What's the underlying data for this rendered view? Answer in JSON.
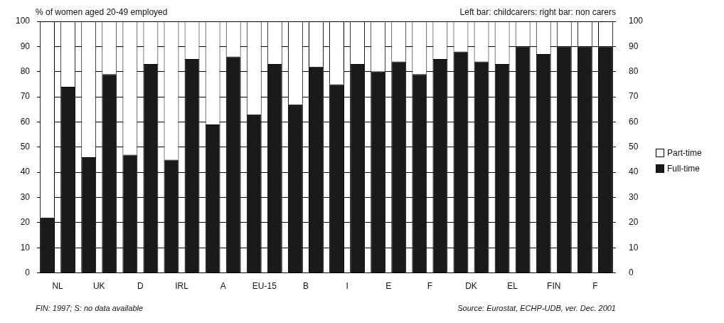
{
  "chart_data": {
    "type": "bar",
    "title": "% of women aged 20-49 employed",
    "subtitle": "Left bar: childcarers: right bar: non carers",
    "categories": [
      "NL",
      null,
      "UK",
      null,
      "D",
      null,
      "IRL",
      null,
      "A",
      null,
      "EU-15",
      null,
      "B",
      null,
      "I",
      null,
      "E",
      null,
      "F",
      null,
      "DK",
      null,
      "EL",
      null,
      "FIN",
      null,
      "F",
      null
    ],
    "stacked": true,
    "series": [
      {
        "name": "Full-time",
        "color": "#1a1a1a",
        "values": [
          22,
          74,
          46,
          79,
          47,
          83,
          45,
          85,
          59,
          86,
          63,
          83,
          67,
          82,
          75,
          83,
          80,
          84,
          79,
          85,
          88,
          84,
          83,
          90,
          87,
          90,
          90,
          90
        ]
      },
      {
        "name": "Part-time",
        "color": "#ffffff",
        "values": [
          78,
          26,
          54,
          21,
          53,
          17,
          55,
          15,
          41,
          14,
          37,
          17,
          33,
          18,
          25,
          17,
          20,
          16,
          21,
          15,
          12,
          16,
          17,
          10,
          13,
          10,
          10,
          10
        ]
      }
    ],
    "ylim": [
      0,
      100
    ],
    "yticks": [
      0,
      10,
      20,
      30,
      40,
      50,
      60,
      70,
      80,
      90,
      100
    ],
    "y2lim": [
      0,
      100
    ],
    "y2ticks": [
      0,
      10,
      20,
      30,
      40,
      50,
      60,
      70,
      80,
      90,
      100
    ],
    "grid": "y",
    "legend": "right",
    "annotations": [
      "FIN: 1997; S: no data available",
      "Source: Eurostat, ECHP-UDB, ver. Dec. 2001"
    ]
  }
}
